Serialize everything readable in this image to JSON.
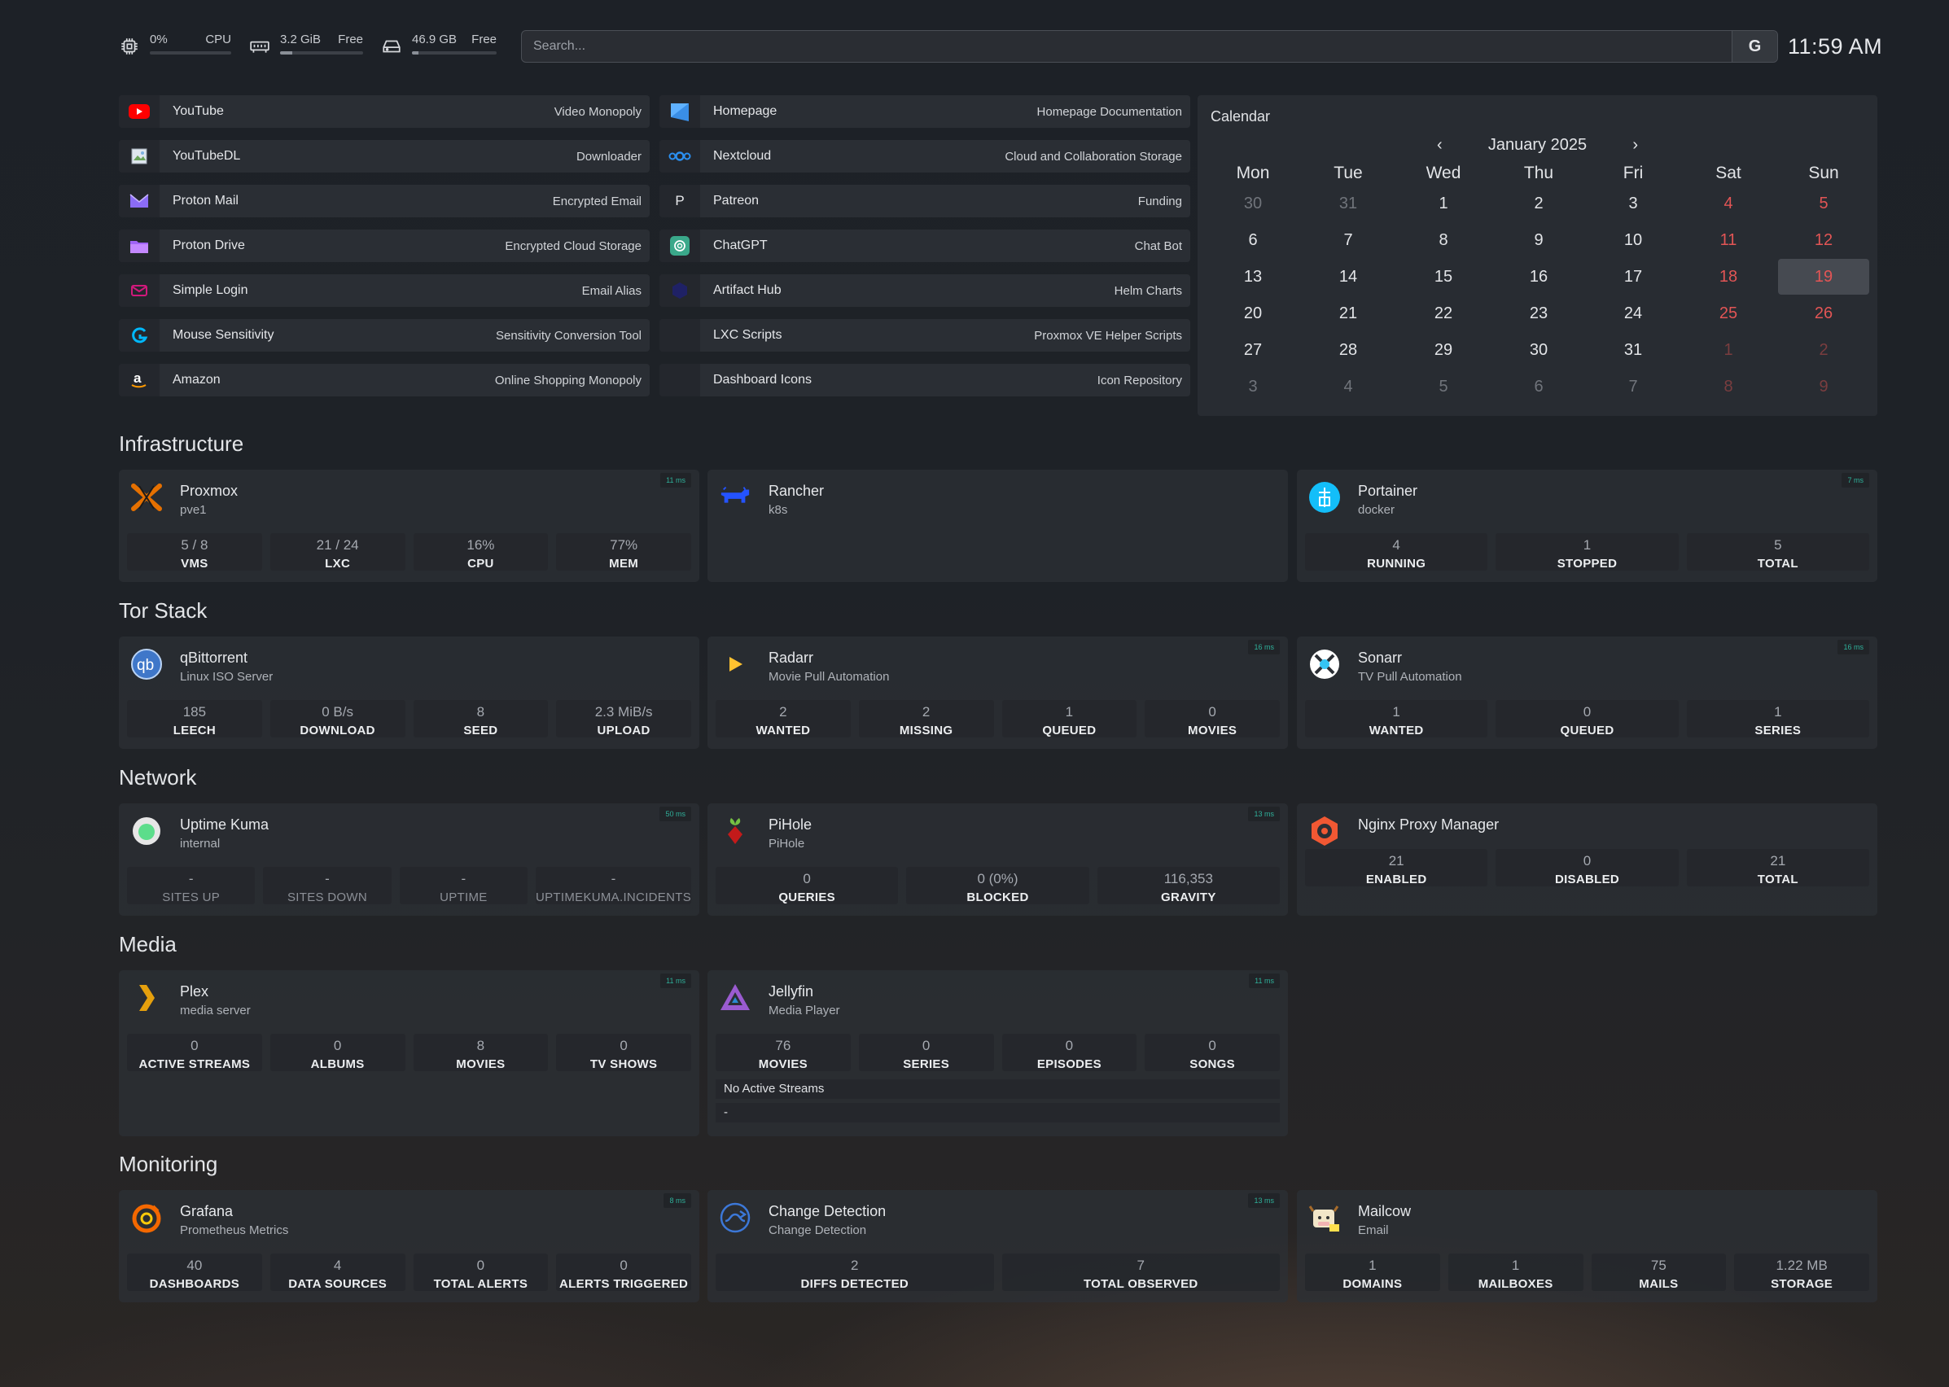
{
  "resources": {
    "cpu": {
      "value": "0%",
      "label": "CPU",
      "level": 0
    },
    "memory": {
      "value": "3.2 GiB",
      "label": "Free",
      "level": 0.15
    },
    "disk": {
      "value": "46.9 GB",
      "label": "Free",
      "level": 0.08
    }
  },
  "search": {
    "placeholder": "Search...",
    "provider": "G"
  },
  "clock": "11:59 AM",
  "bookmarks": {
    "left": [
      {
        "name": "YouTube",
        "desc": "Video Monopoly",
        "icon": "youtube-icon"
      },
      {
        "name": "YouTubeDL",
        "desc": "Downloader",
        "icon": "broken-image-icon"
      },
      {
        "name": "Proton Mail",
        "desc": "Encrypted Email",
        "icon": "proton-mail-icon"
      },
      {
        "name": "Proton Drive",
        "desc": "Encrypted Cloud Storage",
        "icon": "proton-drive-icon"
      },
      {
        "name": "Simple Login",
        "desc": "Email Alias",
        "icon": "simple-login-icon"
      },
      {
        "name": "Mouse Sensitivity",
        "desc": "Sensitivity Conversion Tool",
        "icon": "logitech-icon"
      },
      {
        "name": "Amazon",
        "desc": "Online Shopping Monopoly",
        "icon": "amazon-icon"
      }
    ],
    "right": [
      {
        "name": "Homepage",
        "desc": "Homepage Documentation",
        "icon": "homepage-icon"
      },
      {
        "name": "Nextcloud",
        "desc": "Cloud and Collaboration Storage",
        "icon": "nextcloud-icon"
      },
      {
        "name": "Patreon",
        "desc": "Funding",
        "icon": "patreon-icon"
      },
      {
        "name": "ChatGPT",
        "desc": "Chat Bot",
        "icon": "chatgpt-icon"
      },
      {
        "name": "Artifact Hub",
        "desc": "Helm Charts",
        "icon": "artifact-hub-icon"
      },
      {
        "name": "LXC Scripts",
        "desc": "Proxmox VE Helper Scripts",
        "icon": "blank-icon"
      },
      {
        "name": "Dashboard Icons",
        "desc": "Icon Repository",
        "icon": "blank-icon"
      }
    ]
  },
  "calendar": {
    "title": "Calendar",
    "month": "January 2025",
    "prev": "‹",
    "next": "›",
    "weekdays": [
      "Mon",
      "Tue",
      "Wed",
      "Thu",
      "Fri",
      "Sat",
      "Sun"
    ],
    "weeks": [
      [
        "30",
        "31",
        "1",
        "2",
        "3",
        "4",
        "5"
      ],
      [
        "6",
        "7",
        "8",
        "9",
        "10",
        "11",
        "12"
      ],
      [
        "13",
        "14",
        "15",
        "16",
        "17",
        "18",
        "19"
      ],
      [
        "20",
        "21",
        "22",
        "23",
        "24",
        "25",
        "26"
      ],
      [
        "27",
        "28",
        "29",
        "30",
        "31",
        "1",
        "2"
      ],
      [
        "3",
        "4",
        "5",
        "6",
        "7",
        "8",
        "9"
      ]
    ],
    "today": "19",
    "colors": {
      "weekend": "#e25555",
      "today_bg": "#464a51"
    }
  },
  "sections": [
    {
      "title": "Infrastructure",
      "services": [
        {
          "name": "Proxmox",
          "sub": "pve1",
          "ping": "11 ms",
          "icon": "proxmox-icon",
          "stats": [
            {
              "v": "5 / 8",
              "l": "VMS"
            },
            {
              "v": "21 / 24",
              "l": "LXC"
            },
            {
              "v": "16%",
              "l": "CPU"
            },
            {
              "v": "77%",
              "l": "MEM"
            }
          ]
        },
        {
          "name": "Rancher",
          "sub": "k8s",
          "ping": "",
          "icon": "rancher-icon",
          "stats": []
        },
        {
          "name": "Portainer",
          "sub": "docker",
          "ping": "7 ms",
          "icon": "portainer-icon",
          "stats": [
            {
              "v": "4",
              "l": "RUNNING"
            },
            {
              "v": "1",
              "l": "STOPPED"
            },
            {
              "v": "5",
              "l": "TOTAL"
            }
          ]
        }
      ]
    },
    {
      "title": "Tor Stack",
      "services": [
        {
          "name": "qBittorrent",
          "sub": "Linux ISO Server",
          "ping": "",
          "icon": "qbittorrent-icon",
          "stats": [
            {
              "v": "185",
              "l": "LEECH"
            },
            {
              "v": "0 B/s",
              "l": "DOWNLOAD"
            },
            {
              "v": "8",
              "l": "SEED"
            },
            {
              "v": "2.3 MiB/s",
              "l": "UPLOAD"
            }
          ]
        },
        {
          "name": "Radarr",
          "sub": "Movie Pull Automation",
          "ping": "16 ms",
          "icon": "radarr-icon",
          "stats": [
            {
              "v": "2",
              "l": "WANTED"
            },
            {
              "v": "2",
              "l": "MISSING"
            },
            {
              "v": "1",
              "l": "QUEUED"
            },
            {
              "v": "0",
              "l": "MOVIES"
            }
          ]
        },
        {
          "name": "Sonarr",
          "sub": "TV Pull Automation",
          "ping": "16 ms",
          "icon": "sonarr-icon",
          "stats": [
            {
              "v": "1",
              "l": "WANTED"
            },
            {
              "v": "0",
              "l": "QUEUED"
            },
            {
              "v": "1",
              "l": "SERIES"
            }
          ]
        }
      ]
    },
    {
      "title": "Network",
      "services": [
        {
          "name": "Uptime Kuma",
          "sub": "internal",
          "ping": "50 ms",
          "icon": "uptime-kuma-icon",
          "stats": [
            {
              "v": "-",
              "l": "SITES UP"
            },
            {
              "v": "-",
              "l": "SITES DOWN"
            },
            {
              "v": "-",
              "l": "UPTIME"
            },
            {
              "v": "-",
              "l": "UPTIMEKUMA.INCIDENTS"
            }
          ]
        },
        {
          "name": "PiHole",
          "sub": "PiHole",
          "ping": "13 ms",
          "icon": "pihole-icon",
          "stats": [
            {
              "v": "0",
              "l": "QUERIES"
            },
            {
              "v": "0 (0%)",
              "l": "BLOCKED"
            },
            {
              "v": "116,353",
              "l": "GRAVITY"
            }
          ]
        },
        {
          "name": "Nginx Proxy Manager",
          "sub": "",
          "ping": "",
          "icon": "nginx-proxy-manager-icon",
          "stats": [
            {
              "v": "21",
              "l": "ENABLED"
            },
            {
              "v": "0",
              "l": "DISABLED"
            },
            {
              "v": "21",
              "l": "TOTAL"
            }
          ]
        }
      ]
    },
    {
      "title": "Media",
      "services": [
        {
          "name": "Plex",
          "sub": "media server",
          "ping": "11 ms",
          "icon": "plex-icon",
          "stats": [
            {
              "v": "0",
              "l": "ACTIVE STREAMS"
            },
            {
              "v": "0",
              "l": "ALBUMS"
            },
            {
              "v": "8",
              "l": "MOVIES"
            },
            {
              "v": "0",
              "l": "TV SHOWS"
            }
          ]
        },
        {
          "name": "Jellyfin",
          "sub": "Media Player",
          "ping": "11 ms",
          "icon": "jellyfin-icon",
          "stats": [
            {
              "v": "76",
              "l": "MOVIES"
            },
            {
              "v": "0",
              "l": "SERIES"
            },
            {
              "v": "0",
              "l": "EPISODES"
            },
            {
              "v": "0",
              "l": "SONGS"
            }
          ],
          "streams": [
            "No Active Streams",
            "-"
          ]
        }
      ]
    },
    {
      "title": "Monitoring",
      "services": [
        {
          "name": "Grafana",
          "sub": "Prometheus Metrics",
          "ping": "8 ms",
          "icon": "grafana-icon",
          "stats": [
            {
              "v": "40",
              "l": "DASHBOARDS"
            },
            {
              "v": "4",
              "l": "DATA SOURCES"
            },
            {
              "v": "0",
              "l": "TOTAL ALERTS"
            },
            {
              "v": "0",
              "l": "ALERTS TRIGGERED"
            }
          ]
        },
        {
          "name": "Change Detection",
          "sub": "Change Detection",
          "ping": "13 ms",
          "icon": "change-detection-icon",
          "stats": [
            {
              "v": "2",
              "l": "DIFFS DETECTED"
            },
            {
              "v": "7",
              "l": "TOTAL OBSERVED"
            }
          ]
        },
        {
          "name": "Mailcow",
          "sub": "Email",
          "ping": "",
          "icon": "mailcow-icon",
          "stats": [
            {
              "v": "1",
              "l": "DOMAINS"
            },
            {
              "v": "1",
              "l": "MAILBOXES"
            },
            {
              "v": "75",
              "l": "MAILS"
            },
            {
              "v": "1.22 MB",
              "l": "STORAGE"
            }
          ]
        }
      ]
    }
  ]
}
